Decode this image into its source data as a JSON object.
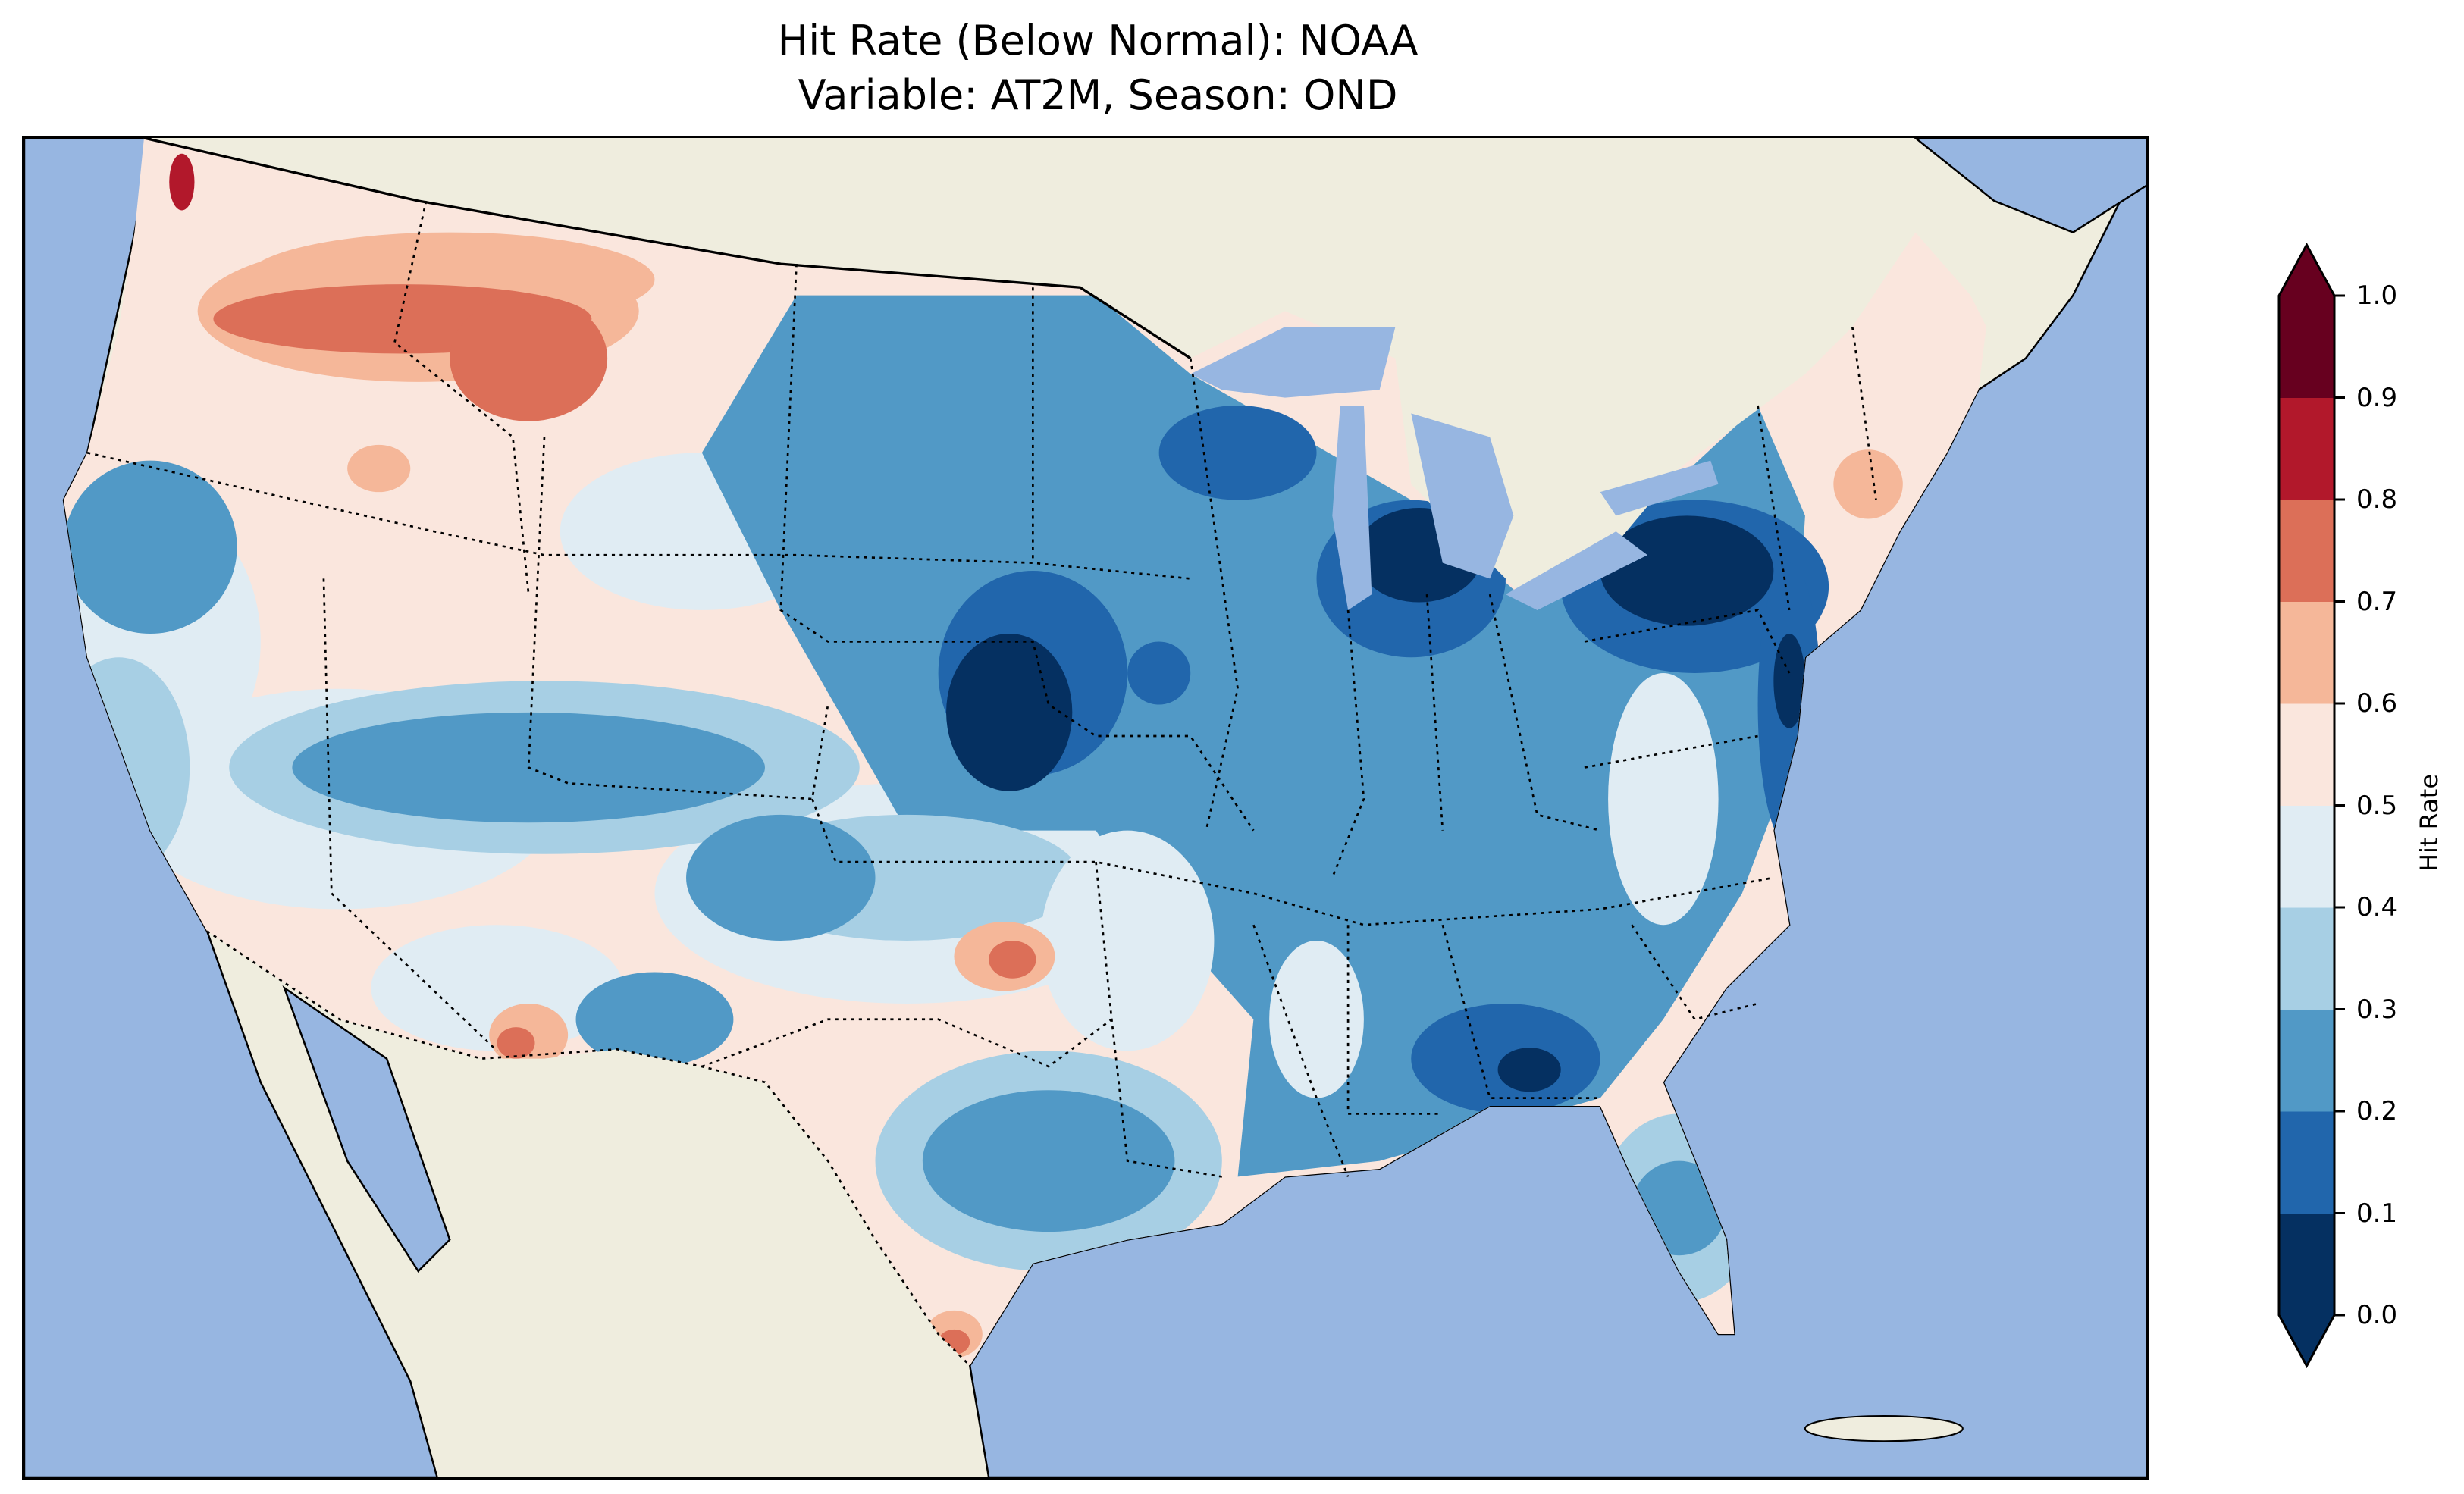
{
  "title": {
    "line1": "Hit Rate (Below Normal): NOAA",
    "line2": "Variable: AT2M, Season: OND"
  },
  "colors": {
    "ocean": "#97b6e1",
    "land": "#efedde",
    "lakes": "#97b6e1"
  },
  "chart_data": {
    "type": "heatmap",
    "title": "Hit Rate (Below Normal): NOAA / Variable: AT2M, Season: OND",
    "colorbar": {
      "label": "Hit Rate",
      "ticks": [
        "0.0",
        "0.1",
        "0.2",
        "0.3",
        "0.4",
        "0.5",
        "0.6",
        "0.7",
        "0.8",
        "0.9",
        "1.0"
      ],
      "levels": [
        0.0,
        0.1,
        0.2,
        0.3,
        0.4,
        0.5,
        0.6,
        0.7,
        0.8,
        0.9,
        1.0
      ],
      "colors": [
        "#053061",
        "#2166ac",
        "#5199c6",
        "#a7cfe4",
        "#e0ecf3",
        "#fae6dd",
        "#f5b799",
        "#dc6f58",
        "#b2182b",
        "#67001f"
      ],
      "extend": "both",
      "range": [
        0.0,
        1.0
      ]
    },
    "region": "Contiguous United States",
    "summary": {
      "east_and_midwest": "mostly 0.1-0.3",
      "darkest_cells": "0.0-0.1 in Nebraska/Kansas, Michigan, New York/Pennsylvania, Georgia",
      "northwest": "0.6-0.8",
      "interior_west": "mostly 0.4-0.6"
    }
  }
}
